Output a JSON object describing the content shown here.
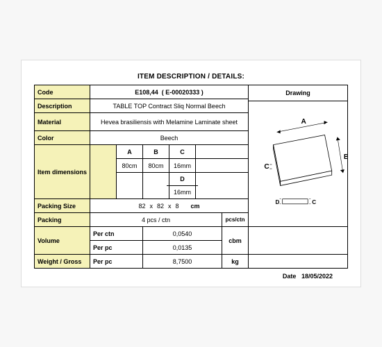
{
  "title": "ITEM DESCRIPTION / DETAILS:",
  "labels": {
    "code": "Code",
    "description": "Description",
    "material": "Material",
    "color": "Color",
    "item_dimensions": "Item dimensions",
    "packing_size": "Packing Size",
    "packing": "Packing",
    "volume": "Volume",
    "weight_gross": "Weight / Gross",
    "drawing": "Drawing",
    "date": "Date"
  },
  "code": {
    "main": "E108,44",
    "alt": "( E-00020333 )"
  },
  "description": "TABLE TOP Contract Sliq Normal Beech",
  "material": "Hevea brasiliensis with Melamine Laminate sheet",
  "color": "Beech",
  "dims": {
    "headers": {
      "a": "A",
      "b": "B",
      "c": "C",
      "d": "D"
    },
    "a": "80cm",
    "b": "80cm",
    "c": "16mm",
    "d": "16mm"
  },
  "packing_size": {
    "l": "82",
    "w": "82",
    "h": "8",
    "sep": "x",
    "unit": "cm"
  },
  "packing": {
    "value": "4 pcs / ctn",
    "unit": "pcs/ctn"
  },
  "volume": {
    "per_ctn_label": "Per ctn",
    "per_ctn": "0,0540",
    "per_pc_label": "Per pc",
    "per_pc": "0,0135",
    "unit": "cbm"
  },
  "weight": {
    "per_pc_label": "Per pc",
    "per_pc": "8,7500",
    "unit": "kg"
  },
  "date": "18/05/2022",
  "drawing": {
    "labels": {
      "a": "A",
      "b": "B",
      "c": "C",
      "c2": "C",
      "d": "D"
    },
    "stroke": "#000000",
    "fill": "#ffffff"
  }
}
